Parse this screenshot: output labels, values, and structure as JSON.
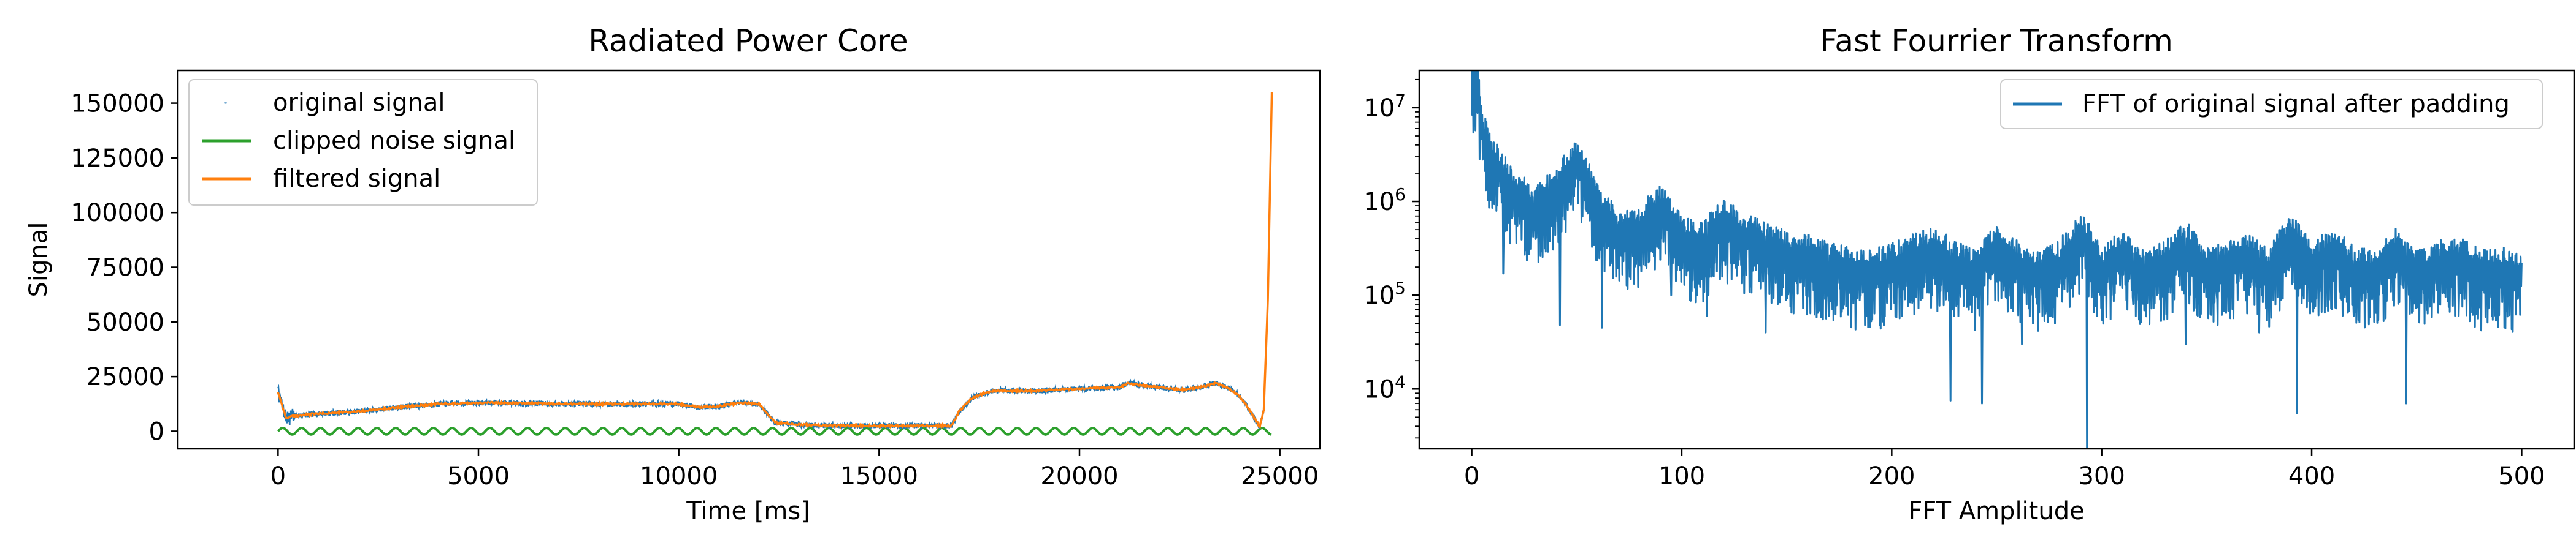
{
  "chart_data": [
    {
      "type": "line",
      "title": "Radiated Power Core",
      "xlabel": "Time [ms]",
      "ylabel": "Signal",
      "xlim": [
        -2500,
        26000
      ],
      "ylim": [
        -8000,
        165000
      ],
      "xticks": [
        0,
        5000,
        10000,
        15000,
        20000,
        25000
      ],
      "yticks": [
        0,
        25000,
        50000,
        75000,
        100000,
        125000,
        150000
      ],
      "legend_position": "upper-left",
      "grid": false,
      "series": [
        {
          "name": "original signal",
          "style": "points",
          "color": "#1f77b4",
          "x": [
            0,
            200,
            400,
            1000,
            2000,
            3000,
            4000,
            5000,
            6000,
            7000,
            8000,
            9000,
            10000,
            10500,
            11000,
            11500,
            12000,
            12400,
            13000,
            14000,
            15000,
            16000,
            16800,
            17000,
            17300,
            17700,
            18000,
            19000,
            20000,
            21000,
            21200,
            22000,
            22600,
            23000,
            23400,
            23700,
            24000,
            24300,
            24500,
            24600,
            24700,
            24800
          ],
          "y": [
            18000,
            6000,
            7000,
            8000,
            9000,
            11000,
            12500,
            13000,
            13000,
            12500,
            12500,
            12500,
            12500,
            11000,
            11500,
            13000,
            12500,
            4000,
            3000,
            2500,
            2500,
            2500,
            2500,
            9000,
            15000,
            18000,
            18500,
            18500,
            19500,
            20000,
            22000,
            20000,
            19000,
            20000,
            22000,
            20000,
            16000,
            8000,
            2000,
            10000,
            60000,
            155000
          ]
        },
        {
          "name": "clipped noise signal",
          "style": "line",
          "color": "#2ca02c",
          "x": [
            0,
            24800
          ],
          "y": [
            0,
            0
          ],
          "amplitude": 1500,
          "period": 470
        },
        {
          "name": "filtered signal",
          "style": "line",
          "color": "#ff7f0e",
          "x": [
            0,
            200,
            400,
            1000,
            2000,
            3000,
            4000,
            5000,
            6000,
            7000,
            8000,
            9000,
            10000,
            10500,
            11000,
            11500,
            12000,
            12400,
            13000,
            14000,
            15000,
            16000,
            16800,
            17000,
            17300,
            17700,
            18000,
            19000,
            20000,
            21000,
            21200,
            22000,
            22600,
            23000,
            23400,
            23700,
            24000,
            24300,
            24500,
            24600,
            24700,
            24800
          ],
          "y": [
            18000,
            6000,
            7000,
            8000,
            9000,
            11000,
            12500,
            13000,
            13000,
            12500,
            12500,
            12500,
            12500,
            11000,
            11500,
            13000,
            12500,
            4000,
            3000,
            2500,
            2500,
            2500,
            2500,
            9000,
            15000,
            18000,
            18500,
            18500,
            19500,
            20000,
            22000,
            20000,
            19000,
            20000,
            22000,
            20000,
            16000,
            8000,
            2000,
            10000,
            60000,
            155000
          ]
        }
      ]
    },
    {
      "type": "line",
      "title": "Fast Fourrier Transform",
      "xlabel": "FFT Amplitude",
      "ylabel": "",
      "xlim": [
        -25,
        525
      ],
      "ylim": [
        2300,
        25000000
      ],
      "yscale": "log",
      "xticks": [
        0,
        100,
        200,
        300,
        400,
        500
      ],
      "yticks": [
        10000,
        100000,
        1000000,
        10000000
      ],
      "yticklabels": [
        {
          "base": "10",
          "exp": "4"
        },
        {
          "base": "10",
          "exp": "5"
        },
        {
          "base": "10",
          "exp": "6"
        },
        {
          "base": "10",
          "exp": "7"
        }
      ],
      "legend_position": "upper-right",
      "grid": false,
      "series": [
        {
          "name": "FFT of original signal after padding",
          "color": "#1f77b4",
          "x": [
            0,
            2,
            5,
            10,
            20,
            30,
            40,
            50,
            60,
            70,
            80,
            90,
            100,
            110,
            120,
            130,
            140,
            150,
            160,
            170,
            180,
            190,
            200,
            210,
            220,
            230,
            240,
            250,
            260,
            270,
            280,
            290,
            300,
            310,
            320,
            330,
            340,
            350,
            360,
            370,
            380,
            390,
            400,
            410,
            420,
            430,
            440,
            450,
            460,
            470,
            480,
            490,
            500
          ],
          "y": [
            25000000,
            25000000,
            6000000,
            3000000,
            1500000,
            900000,
            1500000,
            3000000,
            1000000,
            500000,
            600000,
            1000000,
            450000,
            400000,
            700000,
            500000,
            400000,
            320000,
            300000,
            260000,
            220000,
            200000,
            240000,
            300000,
            350000,
            260000,
            200000,
            380000,
            250000,
            200000,
            250000,
            500000,
            200000,
            350000,
            200000,
            250000,
            400000,
            220000,
            250000,
            300000,
            200000,
            500000,
            250000,
            350000,
            220000,
            200000,
            350000,
            200000,
            250000,
            300000,
            200000,
            220000,
            180000
          ],
          "dips": [
            {
              "x": 15,
              "y": 170000
            },
            {
              "x": 42,
              "y": 48000
            },
            {
              "x": 62,
              "y": 45000
            },
            {
              "x": 95,
              "y": 100000
            },
            {
              "x": 112,
              "y": 60000
            },
            {
              "x": 140,
              "y": 40000
            },
            {
              "x": 170,
              "y": 60000
            },
            {
              "x": 185,
              "y": 120000
            },
            {
              "x": 205,
              "y": 60000
            },
            {
              "x": 228,
              "y": 7500
            },
            {
              "x": 243,
              "y": 7000
            },
            {
              "x": 262,
              "y": 30000
            },
            {
              "x": 293,
              "y": 2300
            },
            {
              "x": 315,
              "y": 80000
            },
            {
              "x": 340,
              "y": 30000
            },
            {
              "x": 355,
              "y": 90000
            },
            {
              "x": 375,
              "y": 40000
            },
            {
              "x": 393,
              "y": 5500
            },
            {
              "x": 420,
              "y": 60000
            },
            {
              "x": 445,
              "y": 7000
            },
            {
              "x": 470,
              "y": 60000
            },
            {
              "x": 490,
              "y": 120000
            }
          ]
        }
      ]
    }
  ]
}
